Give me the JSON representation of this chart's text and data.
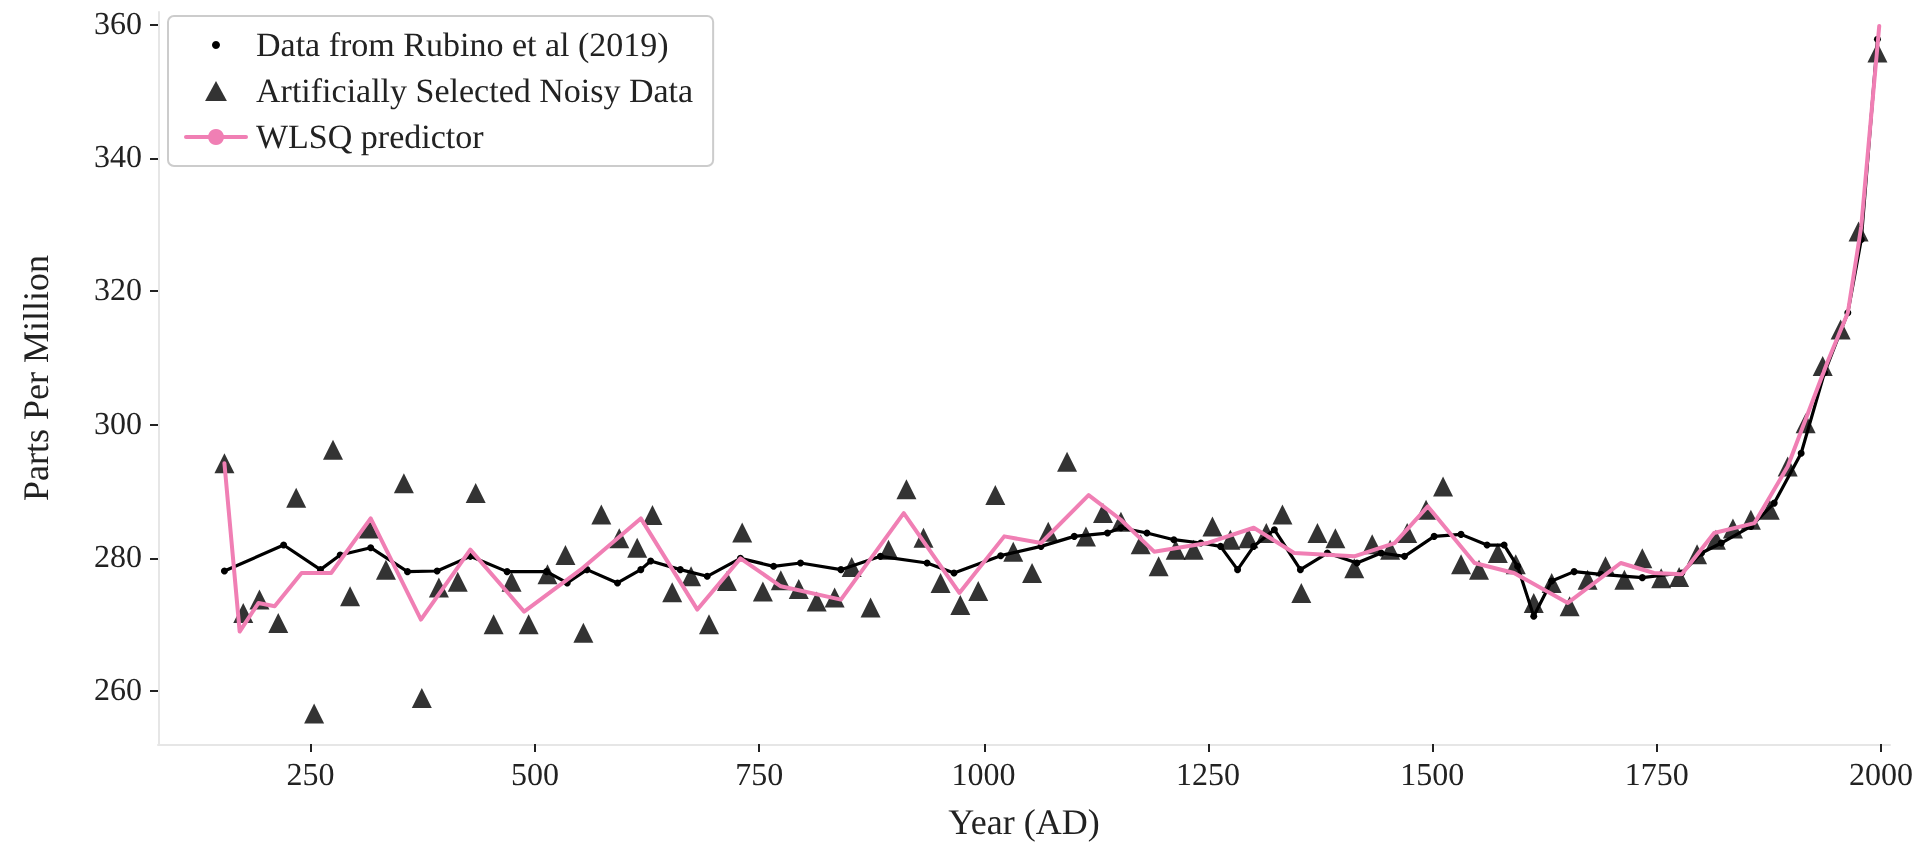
{
  "chart_data": {
    "type": "line",
    "xlabel": "Year (AD)",
    "ylabel": "Parts Per Million",
    "xlim": [
      80,
      2010
    ],
    "ylim": [
      252,
      362
    ],
    "xticks": [
      250,
      500,
      750,
      1000,
      1250,
      1500,
      1750,
      2000
    ],
    "yticks": [
      260,
      280,
      300,
      320,
      340,
      360
    ],
    "grid": false,
    "legend": "top left",
    "series": [
      {
        "name": "Data from Rubino et al (2019)",
        "marker": "circle",
        "color": "#000000",
        "x": [
          154,
          220,
          261,
          283,
          317,
          358,
          391,
          428,
          469,
          513,
          536,
          558,
          592,
          618,
          629,
          662,
          692,
          729,
          766,
          796,
          841,
          885,
          937,
          967,
          1019,
          1064,
          1101,
          1138,
          1153,
          1182,
          1212,
          1242,
          1264,
          1283,
          1301,
          1324,
          1353,
          1383,
          1416,
          1443,
          1469,
          1502,
          1532,
          1561,
          1580,
          1595,
          1613,
          1633,
          1658,
          1688,
          1734,
          1778,
          1800,
          1822,
          1855,
          1881,
          1911,
          1937,
          1963,
          1978,
          1996
        ],
        "values": [
          278,
          281.9,
          278.2,
          280.4,
          281.5,
          277.9,
          278,
          280.2,
          277.9,
          277.9,
          276.2,
          278.2,
          276.2,
          278.2,
          279.5,
          278.2,
          277.2,
          279.9,
          278.7,
          279.2,
          278.2,
          280.2,
          279.2,
          277.7,
          280.3,
          281.7,
          283.2,
          283.7,
          284.5,
          283.7,
          282.7,
          282.2,
          281.7,
          278.2,
          281.7,
          284.2,
          278.2,
          280.7,
          279.2,
          280.7,
          280.2,
          283.2,
          283.5,
          281.9,
          281.9,
          278.7,
          271.2,
          276.5,
          277.9,
          277.5,
          277,
          277.7,
          280.7,
          282.2,
          284.7,
          288.2,
          295.7,
          307.8,
          316.8,
          327.8,
          357.9
        ]
      },
      {
        "name": "Artificially Selected Noisy Data",
        "type": "scatter",
        "marker": "triangle",
        "color": "#000000",
        "x": [
          154,
          175,
          193,
          214,
          234,
          254,
          275,
          294,
          315,
          334,
          354,
          374,
          393,
          414,
          434,
          454,
          474,
          493,
          514,
          534,
          554,
          574,
          594,
          614,
          631,
          653,
          674,
          694,
          714,
          731,
          754,
          774,
          794,
          814,
          834,
          853,
          874,
          894,
          914,
          933,
          952,
          974,
          994,
          1013,
          1033,
          1054,
          1072,
          1093,
          1114,
          1133,
          1153,
          1175,
          1195,
          1214,
          1234,
          1255,
          1275,
          1295,
          1315,
          1333,
          1354,
          1372,
          1392,
          1413,
          1433,
          1453,
          1472,
          1493,
          1512,
          1532,
          1552,
          1573,
          1593,
          1613,
          1633,
          1653,
          1673,
          1693,
          1714,
          1734,
          1755,
          1775,
          1795,
          1816,
          1835,
          1855,
          1876,
          1896,
          1916,
          1935,
          1955,
          1975,
          1996
        ],
        "values": [
          294.2,
          271.7,
          273.7,
          270.2,
          289,
          256.6,
          296.2,
          274.2,
          284.4,
          278.2,
          291.2,
          258.9,
          275.5,
          276.4,
          289.7,
          270,
          276.4,
          270,
          277.5,
          280.4,
          268.7,
          286.5,
          282.9,
          281.5,
          286.4,
          274.8,
          277.2,
          270,
          276.5,
          283.8,
          274.9,
          276.6,
          275.3,
          273.4,
          274,
          278.6,
          272.5,
          281.2,
          290.3,
          283,
          276.2,
          272.9,
          275,
          289.4,
          280.9,
          277.7,
          283.9,
          294.4,
          283.2,
          286.7,
          285.4,
          282,
          278.7,
          281.2,
          281.2,
          284.7,
          282.7,
          282.9,
          283.7,
          286.5,
          274.7,
          283.7,
          282.9,
          278.4,
          282,
          281.2,
          283.7,
          287.2,
          290.7,
          279,
          278.2,
          280.7,
          279,
          273.2,
          276.2,
          272.7,
          276.7,
          278.7,
          276.7,
          279.9,
          276.9,
          277.1,
          280.5,
          282.7,
          284.4,
          285.7,
          287.2,
          293.7,
          300.2,
          308.8,
          314.3,
          329,
          355.9
        ]
      },
      {
        "name": "WLSQ predictor",
        "marker": "none",
        "color": "#f07fb4",
        "x": [
          154,
          171,
          192,
          210,
          240,
          273,
          317,
          373,
          428,
          488,
          551,
          618,
          681,
          729,
          774,
          841,
          911,
          973,
          1023,
          1064,
          1117,
          1153,
          1190,
          1249,
          1301,
          1346,
          1413,
          1458,
          1495,
          1547,
          1591,
          1651,
          1710,
          1747,
          1778,
          1814,
          1859,
          1896,
          1940,
          1963,
          1978,
          1998
        ],
        "values": [
          294.2,
          268.9,
          273.2,
          272.7,
          277.7,
          277.7,
          285.9,
          270.7,
          281.2,
          271.9,
          278.2,
          285.9,
          272.2,
          279.9,
          275.7,
          273.7,
          286.7,
          274.7,
          283.2,
          282.2,
          289.4,
          285.7,
          280.9,
          282.2,
          284.5,
          280.7,
          280.2,
          282.2,
          287.7,
          279.2,
          277.7,
          273.2,
          279.2,
          277.7,
          277.5,
          283.7,
          285.2,
          293.7,
          309.3,
          316.8,
          329.8,
          359.9
        ]
      }
    ]
  }
}
